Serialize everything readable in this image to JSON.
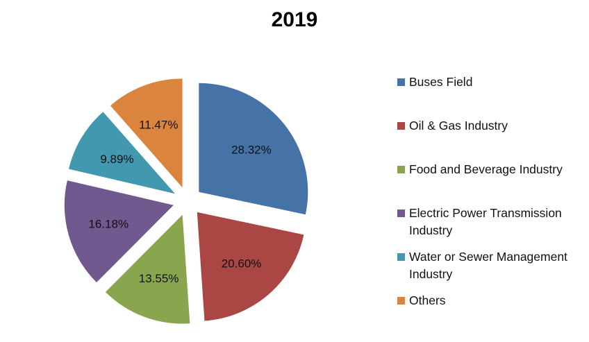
{
  "chart_data": {
    "type": "pie",
    "title": "2019",
    "exploded": true,
    "legend_position": "right",
    "slices": [
      {
        "label": "Buses Field",
        "value": 28.32,
        "display": "28.32%",
        "color": "#4572A7"
      },
      {
        "label": "Oil & Gas Industry",
        "value": 20.6,
        "display": "20.60%",
        "color": "#AA4643"
      },
      {
        "label": "Food and Beverage Industry",
        "value": 13.55,
        "display": "13.55%",
        "color": "#89A54E"
      },
      {
        "label": "Electric Power Transmission Industry",
        "value": 16.18,
        "display": "16.18%",
        "color": "#71588F"
      },
      {
        "label": "Water or Sewer Management Industry",
        "value": 9.89,
        "display": "9.89%",
        "color": "#4198AF"
      },
      {
        "label": "Others",
        "value": 11.47,
        "display": "11.47%",
        "color": "#DB843D"
      }
    ]
  }
}
